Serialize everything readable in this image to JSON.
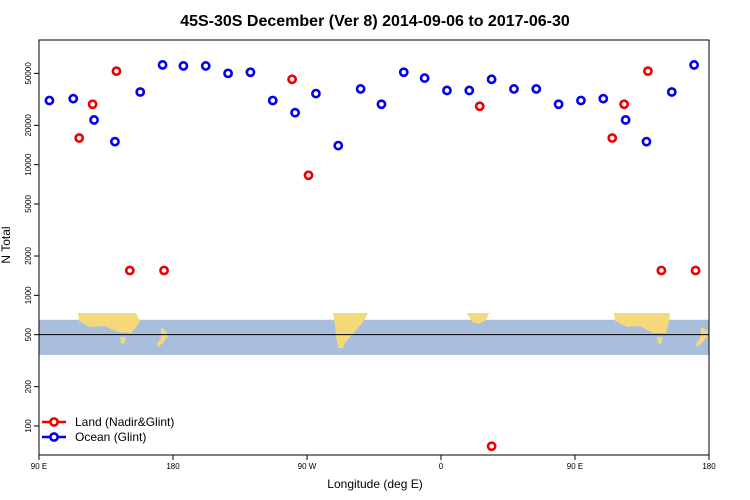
{
  "chart_data": {
    "type": "scatter",
    "title": "45S-30S December (Ver 8)   2014-09-06 to 2017-06-30",
    "xlabel": "Longitude (deg E)",
    "ylabel": "N Total",
    "y_scale": "log",
    "xlim": [
      90,
      540
    ],
    "ylim": [
      60,
      90000
    ],
    "x_ticks": [
      {
        "value": 90,
        "label": "90 E"
      },
      {
        "value": 180,
        "label": "180"
      },
      {
        "value": 270,
        "label": "90 W"
      },
      {
        "value": 360,
        "label": "0"
      },
      {
        "value": 450,
        "label": "90 E"
      },
      {
        "value": 540,
        "label": "180"
      }
    ],
    "y_ticks": [
      {
        "value": 100,
        "label": "100"
      },
      {
        "value": 200,
        "label": "200"
      },
      {
        "value": 500,
        "label": "500"
      },
      {
        "value": 1000,
        "label": "1000"
      },
      {
        "value": 2000,
        "label": "2000"
      },
      {
        "value": 5000,
        "label": "5000"
      },
      {
        "value": 10000,
        "label": "10000"
      },
      {
        "value": 20000,
        "label": "20000"
      },
      {
        "value": 50000,
        "label": "50000"
      }
    ],
    "map_band": {
      "y_min": 350,
      "y_max": 650,
      "land_color": "#f5d87a",
      "ocean_color": "#a8bedc",
      "equator_y": 500
    },
    "legend_position": "bottom-left",
    "series": [
      {
        "name": "Land (Nadir&Glint)",
        "color": "#ee0000",
        "points": [
          {
            "x": 117,
            "y": 16000
          },
          {
            "x": 126,
            "y": 29000
          },
          {
            "x": 142,
            "y": 52000
          },
          {
            "x": 151,
            "y": 1550
          },
          {
            "x": 174,
            "y": 1550
          },
          {
            "x": 260,
            "y": 45000
          },
          {
            "x": 271,
            "y": 8300
          },
          {
            "x": 386,
            "y": 28000
          },
          {
            "x": 394,
            "y": 70
          },
          {
            "x": 475,
            "y": 16000
          },
          {
            "x": 483,
            "y": 29000
          },
          {
            "x": 499,
            "y": 52000
          },
          {
            "x": 508,
            "y": 1550
          },
          {
            "x": 531,
            "y": 1550
          }
        ]
      },
      {
        "name": "Ocean (Glint)",
        "color": "#0000ee",
        "points": [
          {
            "x": 97,
            "y": 31000
          },
          {
            "x": 113,
            "y": 32000
          },
          {
            "x": 127,
            "y": 22000
          },
          {
            "x": 141,
            "y": 15000
          },
          {
            "x": 158,
            "y": 36000
          },
          {
            "x": 173,
            "y": 58000
          },
          {
            "x": 187,
            "y": 57000
          },
          {
            "x": 202,
            "y": 57000
          },
          {
            "x": 217,
            "y": 50000
          },
          {
            "x": 232,
            "y": 51000
          },
          {
            "x": 247,
            "y": 31000
          },
          {
            "x": 262,
            "y": 25000
          },
          {
            "x": 276,
            "y": 35000
          },
          {
            "x": 291,
            "y": 14000
          },
          {
            "x": 306,
            "y": 38000
          },
          {
            "x": 320,
            "y": 29000
          },
          {
            "x": 335,
            "y": 51000
          },
          {
            "x": 349,
            "y": 46000
          },
          {
            "x": 364,
            "y": 37000
          },
          {
            "x": 379,
            "y": 37000
          },
          {
            "x": 394,
            "y": 45000
          },
          {
            "x": 409,
            "y": 38000
          },
          {
            "x": 424,
            "y": 38000
          },
          {
            "x": 439,
            "y": 29000
          },
          {
            "x": 454,
            "y": 31000
          },
          {
            "x": 469,
            "y": 32000
          },
          {
            "x": 484,
            "y": 22000
          },
          {
            "x": 498,
            "y": 15000
          },
          {
            "x": 515,
            "y": 36000
          },
          {
            "x": 530,
            "y": 58000
          }
        ]
      }
    ]
  }
}
